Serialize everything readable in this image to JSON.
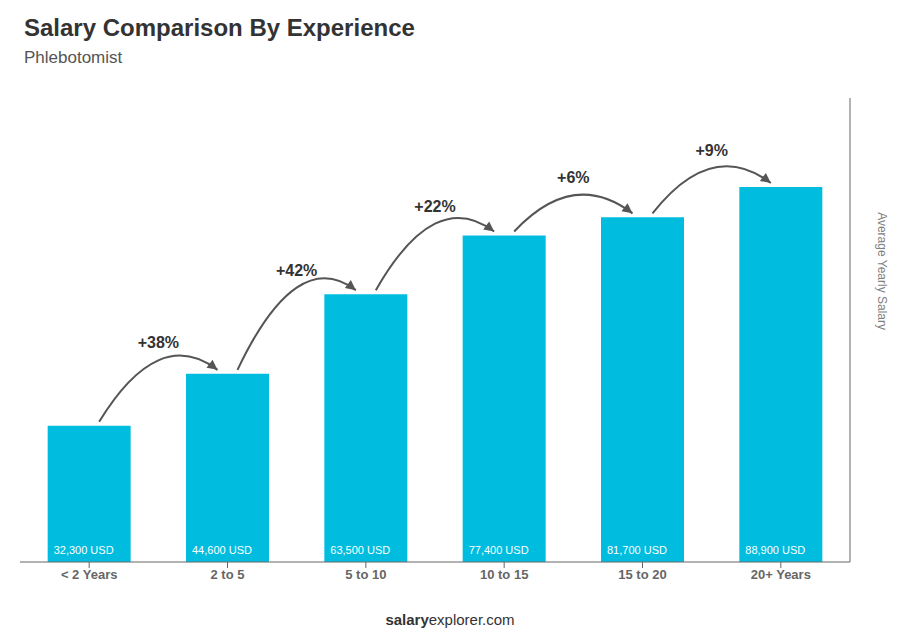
{
  "chart_data": {
    "type": "bar",
    "title": "Salary Comparison By Experience",
    "subtitle": "Phlebotomist",
    "categories": [
      "< 2 Years",
      "2 to 5",
      "5 to 10",
      "10 to 15",
      "15 to 20",
      "20+ Years"
    ],
    "values": [
      32300,
      44600,
      63500,
      77400,
      81700,
      88900
    ],
    "value_labels": [
      "32,300 USD",
      "44,600 USD",
      "63,500 USD",
      "77,400 USD",
      "81,700 USD",
      "88,900 USD"
    ],
    "data_labels": true,
    "color": "#00bde0",
    "ylabel": "Average Yearly Salary",
    "ylim": [
      0,
      110000
    ],
    "tick_labels": "x",
    "grid": false,
    "annotations": [
      "+38%",
      "+42%",
      "+22%",
      "+6%",
      "+9%"
    ],
    "footer": [
      "salary",
      "explorer.com"
    ]
  }
}
